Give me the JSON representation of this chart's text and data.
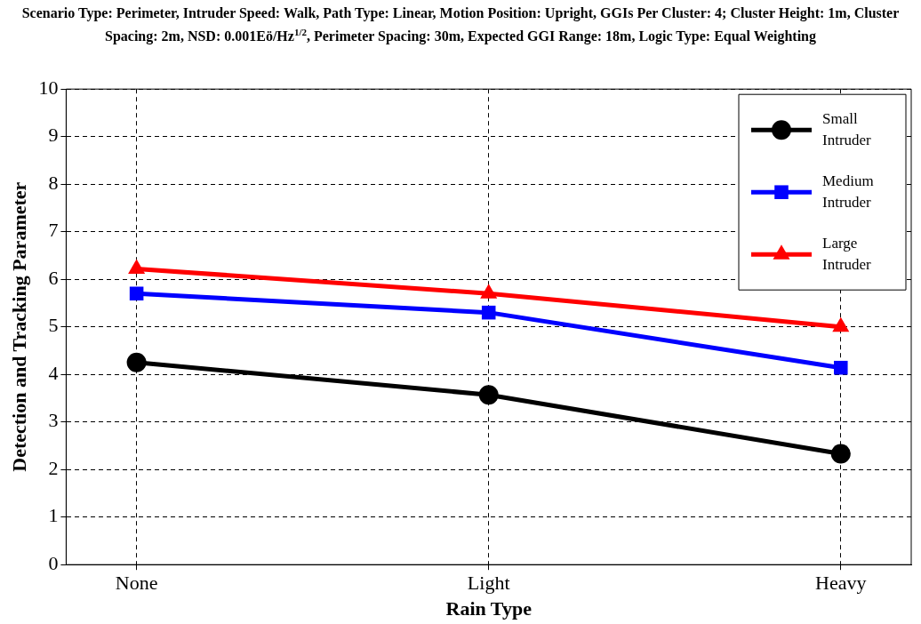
{
  "chart_data": {
    "type": "line",
    "title": "Scenario Type: Perimeter, Intruder Speed: Walk, Path Type: Linear, Motion Position: Upright, GGIs Per Cluster: 4; Cluster Height: 1m, Cluster Spacing: 2m, NSD: 0.001Eö/Hz$^{1/2}$, Perimeter Spacing: 30m, Expected GGI Range: 18m, Logic Type: Equal Weighting",
    "xlabel": "Rain Type",
    "ylabel": "Detection and Tracking Parameter",
    "categories": [
      "None",
      "Light",
      "Heavy"
    ],
    "series": [
      {
        "name": "Small Intruder",
        "color": "#000000",
        "marker": "circle",
        "values": [
          4.25,
          3.57,
          2.33
        ]
      },
      {
        "name": "Medium Intruder",
        "color": "#0000ff",
        "marker": "square",
        "values": [
          5.7,
          5.3,
          4.14
        ]
      },
      {
        "name": "Large Intruder",
        "color": "#ff0000",
        "marker": "triangle",
        "values": [
          6.22,
          5.7,
          5.0
        ]
      }
    ],
    "ylim": [
      0,
      10
    ],
    "yticks": [
      0,
      1,
      2,
      3,
      4,
      5,
      6,
      7,
      8,
      9,
      10
    ],
    "grid": true,
    "legend": "top right",
    "line_style": "solid"
  }
}
